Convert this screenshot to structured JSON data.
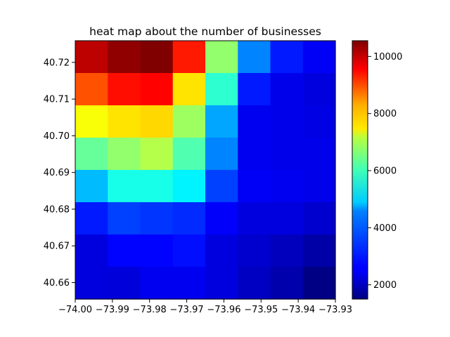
{
  "chart_data": {
    "type": "heatmap",
    "title": "heat map about the number of businesses",
    "xlabel": "",
    "ylabel": "",
    "colormap": "jet",
    "x_edges": [
      -74.0,
      -73.99125,
      -73.9825,
      -73.97375,
      -73.965,
      -73.95625,
      -73.9475,
      -73.93875,
      -73.93
    ],
    "y_edges": [
      40.6555,
      40.6643,
      40.6731,
      40.6819,
      40.6907,
      40.6995,
      40.7083,
      40.7171,
      40.7259
    ],
    "xlim": [
      -74.0,
      -73.93
    ],
    "ylim": [
      40.6555,
      40.7259
    ],
    "x_ticks": [
      -74.0,
      -73.99,
      -73.98,
      -73.97,
      -73.96,
      -73.95,
      -73.94,
      -73.93
    ],
    "x_tick_labels": [
      "−74.00",
      "−73.99",
      "−73.98",
      "−73.97",
      "−73.96",
      "−73.95",
      "−73.94",
      "−73.93"
    ],
    "y_ticks": [
      40.66,
      40.67,
      40.68,
      40.69,
      40.7,
      40.71,
      40.72
    ],
    "y_tick_labels": [
      "40.66",
      "40.67",
      "40.68",
      "40.69",
      "40.70",
      "40.71",
      "40.72"
    ],
    "values": [
      [
        10000,
        10400,
        10550,
        9200,
        6200,
        3800,
        2850,
        2550
      ],
      [
        8700,
        9300,
        9400,
        7400,
        5300,
        2850,
        2450,
        2350
      ],
      [
        7100,
        7400,
        7500,
        6300,
        4100,
        2500,
        2450,
        2400
      ],
      [
        5800,
        6200,
        6500,
        5600,
        3800,
        2500,
        2450,
        2450
      ],
      [
        4300,
        5100,
        5100,
        4800,
        3200,
        2550,
        2500,
        2450
      ],
      [
        2850,
        3200,
        3100,
        3000,
        2600,
        2350,
        2350,
        2200
      ],
      [
        2350,
        2650,
        2650,
        2750,
        2350,
        2200,
        2050,
        1850
      ],
      [
        2350,
        2300,
        2500,
        2500,
        2350,
        2100,
        1900,
        1550
      ]
    ],
    "vmin": 1500,
    "vmax": 10550,
    "colorbar_ticks": [
      2000,
      4000,
      6000,
      8000,
      10000
    ],
    "colorbar_tick_labels": [
      "2000",
      "4000",
      "6000",
      "8000",
      "10000"
    ],
    "grid": false,
    "legend": "none"
  }
}
